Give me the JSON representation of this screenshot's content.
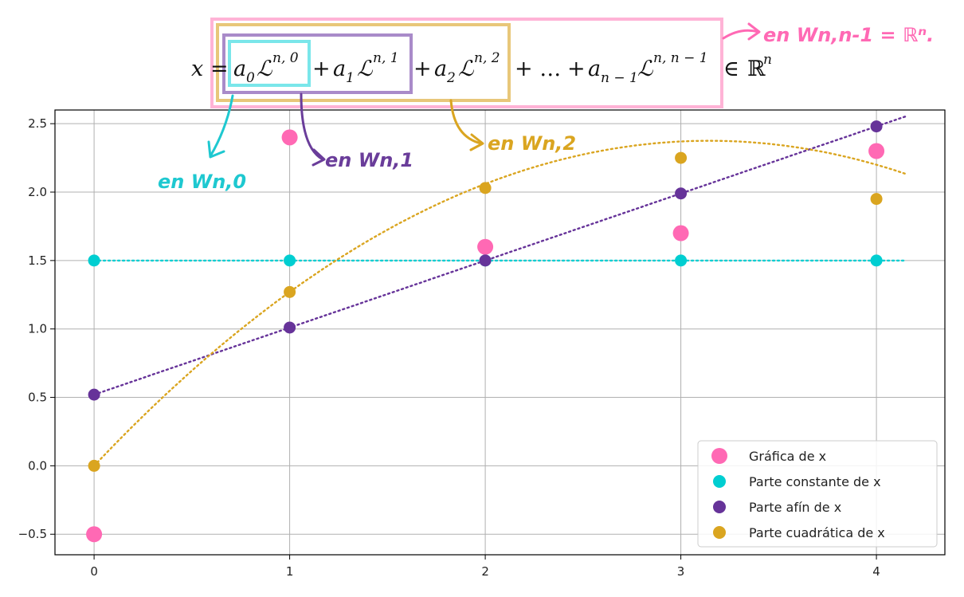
{
  "chart_data": {
    "type": "scatter",
    "x": [
      0,
      1,
      2,
      3,
      4
    ],
    "series": [
      {
        "name": "Gráfica de x",
        "values": [
          -0.5,
          2.4,
          1.6,
          1.7,
          2.3
        ],
        "color": "#ff69b4",
        "line": false,
        "marker": "large"
      },
      {
        "name": "Parte constante de x",
        "values": [
          1.5,
          1.5,
          1.5,
          1.5,
          1.5
        ],
        "color": "#00ced1",
        "line": true,
        "fit": [
          1.5,
          0,
          0
        ]
      },
      {
        "name": "Parte afín de x",
        "values": [
          0.52,
          1.01,
          1.5,
          1.99,
          2.48
        ],
        "color": "#663399",
        "line": true,
        "fit": [
          0.52,
          0.49,
          0
        ]
      },
      {
        "name": "Parte cuadrática de x",
        "values": [
          0.0,
          1.27,
          2.03,
          2.25,
          1.95
        ],
        "color": "#daa520",
        "line": true,
        "fit": [
          0.0,
          1.51,
          -0.24
        ]
      }
    ],
    "xlim": [
      -0.2,
      4.35
    ],
    "ylim": [
      -0.65,
      2.6
    ],
    "xticks": [
      "0",
      "1",
      "2",
      "3",
      "4"
    ],
    "yticks": [
      "−0.5",
      "0.0",
      "0.5",
      "1.0",
      "1.5",
      "2.0",
      "2.5"
    ],
    "ytick_values": [
      -0.5,
      0.0,
      0.5,
      1.0,
      1.5,
      2.0,
      2.5
    ],
    "grid": true,
    "legend_position": "lower-right",
    "line_x_range": [
      0,
      4.15
    ]
  },
  "formula": {
    "lhs": "x",
    "eq": "=",
    "terms": [
      {
        "coef": "a",
        "sub": "0",
        "op": "",
        "sup": "n, 0"
      },
      {
        "coef": "a",
        "sub": "1",
        "op": "+",
        "sup": "n, 1"
      },
      {
        "coef": "a",
        "sub": "2",
        "op": "+",
        "sup": "n, 2"
      },
      {
        "coef": "",
        "sub": "",
        "op": "+ …",
        "sup": ""
      },
      {
        "coef": "a",
        "sub": "n − 1",
        "op": "+",
        "sup": "n, n − 1"
      }
    ],
    "operator_symbol": "ℒ",
    "belongs": "∈",
    "space": "ℝ",
    "space_sup": "n"
  },
  "annotations": [
    {
      "text": "en Wn,0",
      "color": "#1ec8d0"
    },
    {
      "text": "en Wn,1",
      "color": "#6a3d9a"
    },
    {
      "text": "en Wn,2",
      "color": "#daa520"
    },
    {
      "text": "en Wn,n-1 = ℝⁿ.",
      "color": "#ff69b4"
    }
  ],
  "colors": {
    "pink": "#ff69b4",
    "cyan": "#00ced1",
    "purple": "#663399",
    "gold": "#daa520",
    "grid": "#b0b0b0",
    "axes": "#000000"
  }
}
